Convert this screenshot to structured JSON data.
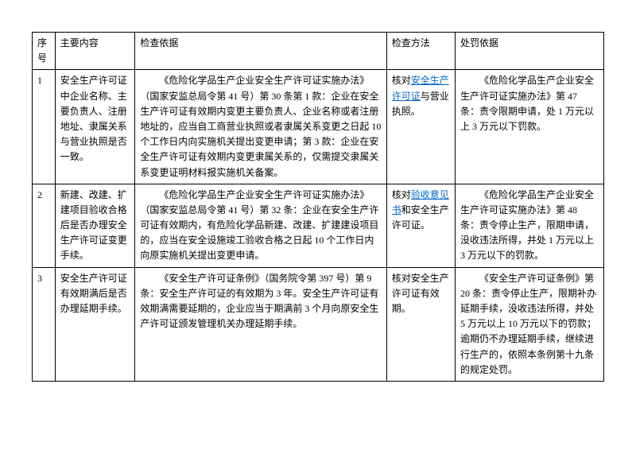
{
  "headers": {
    "num": "序号",
    "content": "主要内容",
    "basis": "检查依据",
    "method": "检查方法",
    "penalty": "处罚依据"
  },
  "rows": [
    {
      "num": "1",
      "content": "安全生产许可证中企业名称、主要负责人、注册地址、隶属关系与营业执照是否一致。",
      "basis": "《危险化学品生产企业安全生产许可证实施办法》（国家安监总局令第 41 号）第 30 条第 1 款：企业在安全生产许可证有效期内变更主要负责人、企业名称或者注册地址的，应当自工商营业执照或者隶属关系变更之日起 10 个工作日内向实施机关提出变更申请；第 3 款：企业在安全生产许可证有效期内变更隶属关系的，仅需提交隶属关系变更证明材料报实施机关备案。",
      "method_pre": "核对",
      "method_link1": "安全生产许可证",
      "method_mid": "与营业执照。",
      "penalty": "《危险化学品生产企业安全生产许可证实施办法》第 47 条：责令限期申请，处 1 万元以上 3 万元以下罚款。"
    },
    {
      "num": "2",
      "content": "新建、改建、扩建项目验收合格后是否办理安全生产许可证变更手续。",
      "basis": "《危险化学品生产企业安全生产许可证实施办法》（国家安监总局令第 41 号）第 32 条：企业在安全生产许可证有效期内，有危险化学品新建、改建、扩建建设项目的，应当在安全设施竣工验收合格之日起 10 个工作日内向原实施机关提出变更申请。",
      "method_pre": "核对",
      "method_link1": "验收意见书",
      "method_mid": "和安全生产许可证。",
      "penalty": "《危险化学品生产企业安全生产许可证实施办法》第 48 条：责令停止生产，限期申请，没收违法所得，并处 1 万元以上 3 万元以下的罚款。"
    },
    {
      "num": "3",
      "content": "安全生产许可证有效期满后是否办理延期手续。",
      "basis": "《安全生产许可证条例》（国务院令第 397 号）第 9 条：安全生产许可证的有效期为 3 年。安全生产许可证有效期满需要延期的，企业应当于期满前 3 个月向原安全生产许可证颁发管理机关办理延期手续。",
      "method_pre": "核对安全生产许可证有效期。",
      "method_link1": "",
      "method_mid": "",
      "penalty": "《安全生产许可证条例》第 20 条：责令停止生产，限期补办延期手续，没收违法所得，并处 5 万元以上 10 万元以下的罚款；逾期仍不办理延期手续，继续进行生产的，依照本条例第十九条的规定处罚。"
    }
  ]
}
